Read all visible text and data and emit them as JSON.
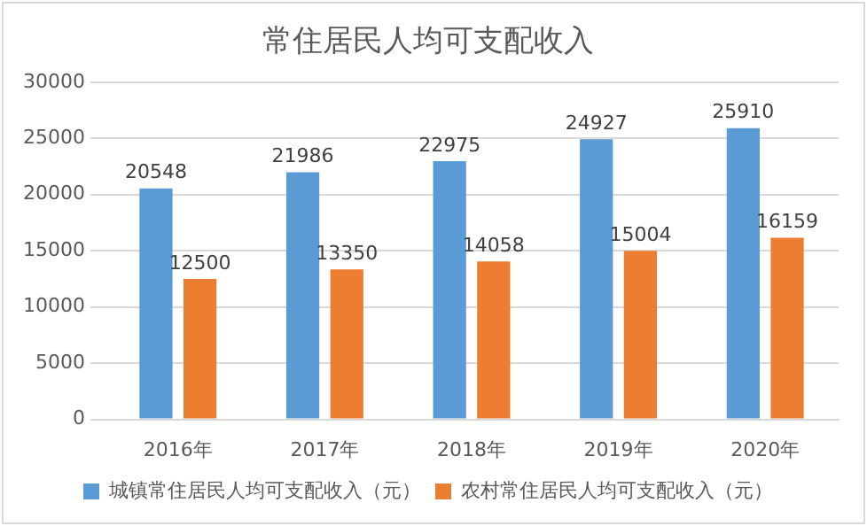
{
  "chart_data": {
    "type": "bar",
    "title": "常住居民人均可支配收入",
    "categories": [
      "2016年",
      "2017年",
      "2018年",
      "2019年",
      "2020年"
    ],
    "series": [
      {
        "name": "城镇常住居民人均可支配收入（元）",
        "color": "#5b9bd5",
        "values": [
          20548,
          21986,
          22975,
          24927,
          25910
        ]
      },
      {
        "name": "农村常住居民人均可支配收入（元）",
        "color": "#ed7d31",
        "values": [
          12500,
          13350,
          14058,
          15004,
          16159
        ]
      }
    ],
    "ylim": [
      0,
      30000
    ],
    "yticks": [
      0,
      5000,
      10000,
      15000,
      20000,
      25000,
      30000
    ],
    "grid": "y",
    "legend": "bottom",
    "data_labels": true
  }
}
